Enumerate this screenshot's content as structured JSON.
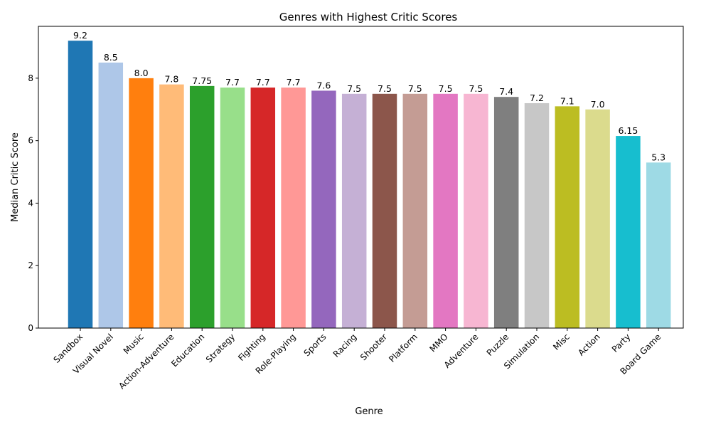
{
  "chart_data": {
    "type": "bar",
    "title": "Genres with Highest Critic Scores",
    "xlabel": "Genre",
    "ylabel": "Median Critic Score",
    "ylim": [
      0,
      9.66
    ],
    "yticks": [
      0,
      2,
      4,
      6,
      8
    ],
    "grid": false,
    "categories": [
      "Sandbox",
      "Visual Novel",
      "Music",
      "Action-Adventure",
      "Education",
      "Strategy",
      "Fighting",
      "Role-Playing",
      "Sports",
      "Racing",
      "Shooter",
      "Platform",
      "MMO",
      "Adventure",
      "Puzzle",
      "Simulation",
      "Misc",
      "Action",
      "Party",
      "Board Game"
    ],
    "values": [
      9.2,
      8.5,
      8.0,
      7.8,
      7.75,
      7.7,
      7.7,
      7.7,
      7.6,
      7.5,
      7.5,
      7.5,
      7.5,
      7.5,
      7.4,
      7.2,
      7.1,
      7.0,
      6.15,
      5.3
    ],
    "value_labels": [
      "9.2",
      "8.5",
      "8.0",
      "7.8",
      "7.75",
      "7.7",
      "7.7",
      "7.7",
      "7.6",
      "7.5",
      "7.5",
      "7.5",
      "7.5",
      "7.5",
      "7.4",
      "7.2",
      "7.1",
      "7.0",
      "6.15",
      "5.3"
    ],
    "colors": [
      "#1f77b4",
      "#aec7e8",
      "#ff7f0e",
      "#ffbb78",
      "#2ca02c",
      "#98df8a",
      "#d62728",
      "#ff9896",
      "#9467bd",
      "#c5b0d5",
      "#8c564b",
      "#c49c94",
      "#e377c2",
      "#f7b6d2",
      "#7f7f7f",
      "#c7c7c7",
      "#bcbd22",
      "#dbdb8d",
      "#17becf",
      "#9edae5"
    ]
  }
}
